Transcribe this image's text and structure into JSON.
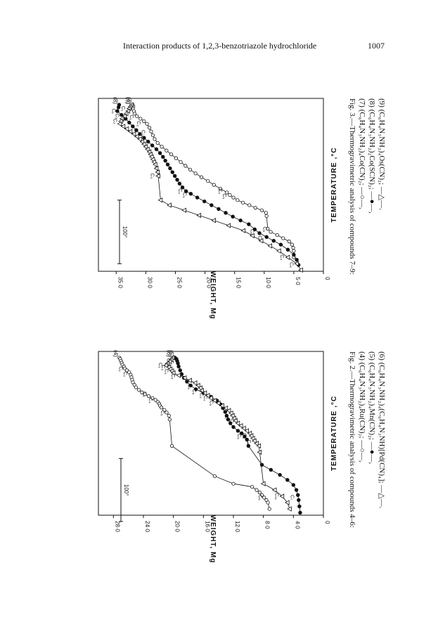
{
  "header": {
    "running_title": "Interaction products of 1,2,3-benzotriazole hydrochloride",
    "page_number": "1007"
  },
  "figures": [
    {
      "caption_lines": [
        "Fig. 2.—Thermogravimetric analysis of compounds 4–6:",
        "(4) (C₆H₄N₃NH₂)₄Ru(CN)₂;  —○—,",
        "(5) (C₆H₄N₃NH₂)₄Mn(CN)₂;  —●—,",
        "(6) (C₆H₄N₃NH₂)₄(C₆H₄N₃NH)[Pd(CN)₄];  —△—."
      ],
      "scale_bar_label": "100°"
    },
    {
      "caption_lines": [
        "Fig. 3.—Thermogravimetric analysis of compounds 7–9:",
        "(7) (C₆H₄N₃NH₂)₄Co(CN)₂;  —○—,",
        "(8) (C₆H₄N₃NH₂)₂Co(SCN)₂;  —●—,",
        "(9) (C₆H₄N₃NH₂)₄Os(CN)₂;  —△—."
      ],
      "scale_bar_label": "100°"
    }
  ],
  "chart_data": [
    {
      "type": "line",
      "xlabel": "TEMPERATURE ,°C",
      "ylabel": "WEIGHT, Mg",
      "ylim": [
        0,
        30
      ],
      "yticks": [
        "28·0",
        "24·0",
        "20·0",
        "16·0",
        "12·0",
        "8·0",
        "4·0",
        "0"
      ],
      "ytick_values": [
        28,
        24,
        20,
        16,
        12,
        8,
        4,
        0
      ],
      "x_scale_bar_deg": 100,
      "series": [
        {
          "name": "(4)",
          "marker": "circle-open",
          "x": [
            0,
            2,
            5,
            8,
            11,
            14,
            17,
            20,
            23,
            27,
            31,
            35,
            39,
            43,
            47,
            51,
            55,
            58,
            61,
            64,
            67,
            70,
            73,
            76,
            79,
            83,
            87,
            92,
            98,
            140,
            188,
            200,
            205,
            210,
            214,
            218,
            222,
            226,
            230,
            240
          ],
          "y": [
            27.2,
            27.1,
            27.0,
            26.9,
            26.8,
            26.6,
            26.5,
            26.2,
            25.9,
            25.7,
            25.6,
            25.5,
            25.4,
            25.2,
            25.0,
            24.6,
            24.2,
            23.8,
            23.3,
            22.8,
            22.4,
            22.1,
            21.9,
            21.8,
            21.6,
            21.2,
            20.9,
            20.6,
            20.5,
            20.2,
            14.5,
            12.0,
            9.5,
            8.9,
            8.5,
            8.2,
            7.9,
            7.6,
            7.4,
            7.2
          ],
          "labels": [
            {
              "text": "C₁",
              "x": 18,
              "y": 26.4
            },
            {
              "text": "C₂",
              "x": 26,
              "y": 25.8
            },
            {
              "text": "C₃",
              "x": 58,
              "y": 23.2
            },
            {
              "text": "C₄",
              "x": 68,
              "y": 22.4
            },
            {
              "text": "C₅",
              "x": 88,
              "y": 20.8
            },
            {
              "text": "C₆",
              "x": 222,
              "y": 7.8
            }
          ]
        },
        {
          "name": "(5)",
          "marker": "circle-filled",
          "x": [
            0,
            2,
            5,
            9,
            14,
            20,
            26,
            32,
            38,
            44,
            50,
            56,
            62,
            68,
            74,
            80,
            86,
            92,
            98,
            104,
            110,
            116,
            120,
            125,
            130,
            140,
            170,
            178,
            186,
            194,
            202,
            210,
            218,
            226,
            236,
            246
          ],
          "y": [
            19.8,
            19.6,
            19.5,
            19.4,
            19.3,
            19.1,
            18.9,
            18.6,
            18.2,
            17.7,
            17.0,
            16.0,
            15.0,
            14.2,
            13.7,
            13.4,
            13.1,
            12.9,
            12.7,
            12.4,
            12.0,
            11.4,
            10.9,
            10.5,
            10.2,
            10.0,
            8.2,
            7.0,
            5.8,
            4.8,
            4.0,
            3.6,
            3.4,
            3.3,
            3.2,
            3.1
          ],
          "labels": [
            {
              "text": "C₁",
              "x": 5,
              "y": 20.0
            },
            {
              "text": "C₂",
              "x": 8,
              "y": 19.6
            },
            {
              "text": "C₃",
              "x": 60,
              "y": 15.6
            },
            {
              "text": "C₄",
              "x": 64,
              "y": 15.1
            },
            {
              "text": "C₅",
              "x": 72,
              "y": 14.3
            },
            {
              "text": "C₆",
              "x": 125,
              "y": 10.6
            },
            {
              "text": "C₇",
              "x": 222,
              "y": 3.5
            }
          ]
        },
        {
          "name": "(6)",
          "marker": "triangle-open",
          "x": [
            0,
            3,
            6,
            9,
            12,
            15,
            18,
            21,
            24,
            28,
            32,
            36,
            40,
            44,
            48,
            52,
            56,
            60,
            64,
            68,
            72,
            76,
            80,
            84,
            88,
            92,
            96,
            100,
            104,
            108,
            112,
            116,
            120,
            124,
            128,
            132,
            136,
            140,
            150,
            200,
            210,
            220,
            230,
            240
          ],
          "y": [
            20.1,
            20.3,
            20.5,
            20.8,
            21.0,
            20.6,
            20.4,
            20.2,
            20.0,
            19.3,
            18.5,
            17.8,
            17.1,
            16.7,
            16.4,
            16.2,
            15.8,
            15.4,
            15.0,
            14.5,
            14.0,
            13.5,
            13.0,
            12.6,
            12.3,
            12.1,
            11.9,
            11.7,
            11.4,
            11.0,
            10.6,
            10.2,
            9.8,
            9.6,
            9.4,
            9.2,
            8.9,
            8.6,
            8.5,
            8.0,
            6.5,
            5.5,
            4.8,
            4.5
          ],
          "labels": [
            {
              "text": "C₁",
              "x": 12,
              "y": 21.1
            },
            {
              "text": "C₂",
              "x": 16,
              "y": 20.7
            },
            {
              "text": "C₃",
              "x": 22,
              "y": 20.3
            },
            {
              "text": "C₄",
              "x": 30,
              "y": 19.4
            },
            {
              "text": "C₅",
              "x": 46,
              "y": 17.2
            },
            {
              "text": "C₆",
              "x": 54,
              "y": 16.6
            },
            {
              "text": "C₇",
              "x": 94,
              "y": 12.3
            },
            {
              "text": "C₈",
              "x": 102,
              "y": 11.6
            },
            {
              "text": "C₉",
              "x": 124,
              "y": 9.9
            },
            {
              "text": "C₁₀",
              "x": 136,
              "y": 9.3
            },
            {
              "text": "C₁₁",
              "x": 220,
              "y": 5.6
            }
          ]
        }
      ]
    },
    {
      "type": "line",
      "xlabel": "TEMPERATURE ,°C",
      "ylabel": "WEIGHT, Mg",
      "ylim": [
        0,
        38
      ],
      "yticks": [
        "35·0",
        "30·0",
        "25·0",
        "20·0",
        "15·0",
        "10·0",
        "5·0",
        "0"
      ],
      "ytick_values": [
        35,
        30,
        25,
        20,
        15,
        10,
        5,
        0
      ],
      "x_scale_bar_deg": 100,
      "series": [
        {
          "name": "(7)",
          "marker": "circle-open",
          "x": [
            0,
            3,
            6,
            10,
            14,
            18,
            22,
            26,
            30,
            36,
            42,
            48,
            54,
            60,
            66,
            72,
            78,
            84,
            90,
            96,
            102,
            108,
            114,
            120,
            126,
            132,
            138,
            142,
            146,
            150,
            154,
            158,
            162,
            166,
            170,
            175,
            195,
            200,
            205,
            210,
            215,
            220,
            225,
            230,
            240
          ],
          "y": [
            32.2,
            32.1,
            32.2,
            32.0,
            31.9,
            31.5,
            30.9,
            30.3,
            29.8,
            29.4,
            29.1,
            28.8,
            28.5,
            28.0,
            27.3,
            26.5,
            25.7,
            24.9,
            24.1,
            23.3,
            22.5,
            21.6,
            20.6,
            19.5,
            18.5,
            17.4,
            16.3,
            15.8,
            15.2,
            14.5,
            13.6,
            12.5,
            11.5,
            10.4,
            9.7,
            9.6,
            9.4,
            8.9,
            7.8,
            6.8,
            5.8,
            5.3,
            5.1,
            5.0,
            5.0
          ],
          "labels": [
            {
              "text": "C₁",
              "x": 20,
              "y": 31.6
            },
            {
              "text": "C₂",
              "x": 30,
              "y": 30.4
            },
            {
              "text": "C₃",
              "x": 44,
              "y": 29.6
            },
            {
              "text": "C₄",
              "x": 136,
              "y": 16.6
            },
            {
              "text": "C₅",
              "x": 144,
              "y": 15.9
            },
            {
              "text": "C₆",
              "x": 196,
              "y": 9.1
            }
          ]
        },
        {
          "name": "(8)",
          "marker": "circle-filled",
          "x": [
            0,
            4,
            10,
            16,
            22,
            28,
            34,
            40,
            46,
            52,
            58,
            64,
            70,
            76,
            82,
            88,
            94,
            100,
            106,
            112,
            118,
            124,
            130,
            136,
            140,
            146,
            152,
            158,
            164,
            170,
            176,
            182,
            188,
            196,
            202,
            208,
            214,
            220,
            228,
            236,
            244,
            252
          ],
          "y": [
            34.5,
            34.6,
            34.8,
            34.1,
            33.4,
            32.8,
            32.2,
            31.6,
            31.0,
            30.3,
            29.6,
            28.9,
            28.2,
            27.6,
            27.1,
            26.7,
            26.3,
            25.9,
            25.5,
            25.1,
            24.7,
            24.3,
            23.8,
            23.2,
            22.4,
            21.3,
            20.1,
            18.9,
            17.7,
            16.5,
            15.3,
            14.0,
            12.6,
            11.6,
            10.8,
            9.6,
            8.4,
            7.2,
            6.0,
            5.0,
            4.5,
            4.2
          ],
          "labels": [
            {
              "text": "C₁",
              "x": 10,
              "y": 34.6
            },
            {
              "text": "C₂",
              "x": 18,
              "y": 34.0
            },
            {
              "text": "C₃",
              "x": 26,
              "y": 33.2
            },
            {
              "text": "C₄",
              "x": 136,
              "y": 23.4
            },
            {
              "text": "C₅",
              "x": 142,
              "y": 22.6
            },
            {
              "text": "C₆",
              "x": 200,
              "y": 11.2
            },
            {
              "text": "C₇",
              "x": 210,
              "y": 9.9
            },
            {
              "text": "C₈",
              "x": 252,
              "y": 4.6
            }
          ]
        },
        {
          "name": "(9)",
          "marker": "triangle-open",
          "x": [
            0,
            3,
            6,
            10,
            14,
            18,
            22,
            26,
            30,
            34,
            38,
            42,
            46,
            50,
            54,
            58,
            62,
            66,
            70,
            74,
            78,
            82,
            86,
            90,
            94,
            100,
            106,
            112,
            150,
            158,
            166,
            174,
            182,
            190,
            198,
            206,
            214,
            222,
            230,
            240,
            250,
            260
          ],
          "y": [
            32.4,
            32.6,
            32.8,
            33.0,
            33.3,
            33.6,
            34.0,
            34.2,
            34.4,
            33.8,
            33.2,
            32.6,
            32.0,
            31.5,
            31.0,
            30.6,
            30.3,
            30.0,
            29.7,
            29.4,
            29.2,
            29.0,
            28.8,
            28.6,
            28.4,
            28.2,
            28.0,
            27.9,
            27.5,
            26.0,
            23.5,
            21.0,
            18.5,
            16.0,
            13.5,
            12.0,
            10.5,
            9.0,
            7.5,
            6.0,
            4.5,
            3.8
          ],
          "labels": [
            {
              "text": "C₁",
              "x": 6,
              "y": 33.0
            },
            {
              "text": "C₂",
              "x": 26,
              "y": 34.4
            },
            {
              "text": "C₃",
              "x": 112,
              "y": 28.1
            },
            {
              "text": "C₄",
              "x": 240,
              "y": 6.2
            }
          ]
        }
      ]
    }
  ]
}
